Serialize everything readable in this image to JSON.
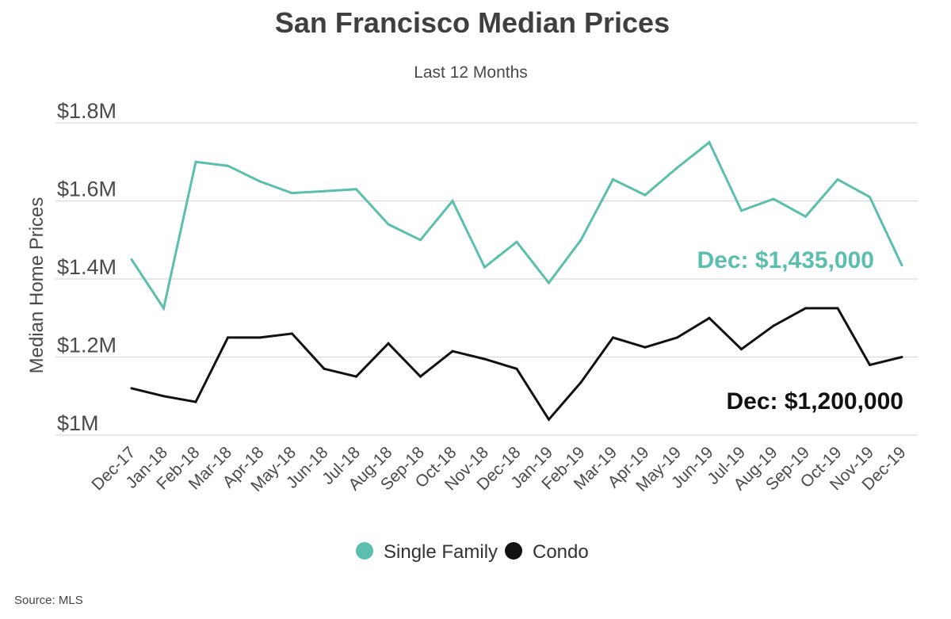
{
  "colors": {
    "single_family": "#5bbfae",
    "condo": "#111111"
  },
  "chart_data": {
    "type": "line",
    "title": "San Francisco Median Prices",
    "subtitle": "Last 12 Months",
    "xlabel": "",
    "ylabel": "Median Home Prices",
    "ylim": [
      1000000,
      1800000
    ],
    "yticks": [
      {
        "value": 1000000,
        "label": "$1M"
      },
      {
        "value": 1200000,
        "label": "$1.2M"
      },
      {
        "value": 1400000,
        "label": "$1.4M"
      },
      {
        "value": 1600000,
        "label": "$1.6M"
      },
      {
        "value": 1800000,
        "label": "$1.8M"
      }
    ],
    "grid": true,
    "legend_position": "bottom",
    "categories": [
      "Dec-17",
      "Jan-18",
      "Feb-18",
      "Mar-18",
      "Apr-18",
      "May-18",
      "Jun-18",
      "Jul-18",
      "Aug-18",
      "Sep-18",
      "Oct-18",
      "Nov-18",
      "Dec-18",
      "Jan-19",
      "Feb-19",
      "Mar-19",
      "Apr-19",
      "May-19",
      "Jun-19",
      "Jul-19",
      "Aug-19",
      "Sep-19",
      "Oct-19",
      "Nov-19",
      "Dec-19"
    ],
    "series": [
      {
        "name": "Single Family",
        "color": "#5bbfae",
        "values": [
          1450000,
          1325000,
          1700000,
          1690000,
          1650000,
          1620000,
          1625000,
          1630000,
          1540000,
          1500000,
          1600000,
          1430000,
          1495000,
          1390000,
          1500000,
          1655000,
          1615000,
          1685000,
          1750000,
          1575000,
          1605000,
          1560000,
          1655000,
          1610000,
          1435000
        ],
        "annotation": "Dec: $1,435,000"
      },
      {
        "name": "Condo",
        "color": "#111111",
        "values": [
          1120000,
          1100000,
          1085000,
          1250000,
          1250000,
          1260000,
          1170000,
          1150000,
          1235000,
          1150000,
          1215000,
          1195000,
          1170000,
          1040000,
          1135000,
          1250000,
          1225000,
          1250000,
          1300000,
          1220000,
          1280000,
          1325000,
          1325000,
          1180000,
          1200000
        ],
        "annotation": "Dec: $1,200,000"
      }
    ]
  },
  "source": "Source:  MLS"
}
